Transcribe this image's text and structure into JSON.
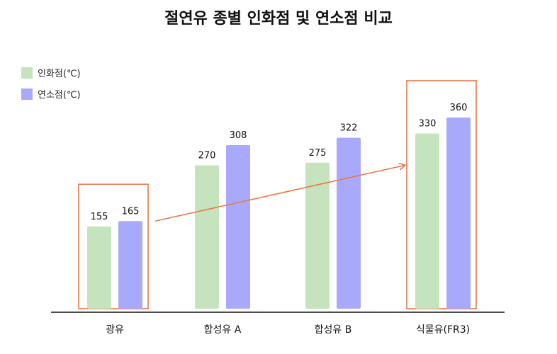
{
  "chart_data": {
    "type": "bar",
    "title": "절연유 종별 인화점 및 연소점 비교",
    "categories": [
      "광유",
      "합성유 A",
      "합성유 B",
      "식물유(FR3)"
    ],
    "series": [
      {
        "name": "인화점(℃)",
        "color": "#c5e4bd",
        "values": [
          155,
          270,
          275,
          330
        ]
      },
      {
        "name": "연소점(℃)",
        "color": "#a9a9fb",
        "values": [
          165,
          308,
          322,
          360
        ]
      }
    ],
    "value_labels": [
      [
        "155",
        "270",
        "275",
        "330"
      ],
      [
        "165",
        "308",
        "322",
        "360"
      ]
    ],
    "ylim": [
      0,
      400
    ],
    "grid": false,
    "legend_position": "top-left",
    "highlight_color": "#e8784a",
    "highlighted_categories": [
      "광유",
      "식물유(FR3)"
    ],
    "annotations": [
      {
        "type": "trend-arrow",
        "from_category": "광유",
        "to_category": "식물유(FR3)"
      }
    ]
  }
}
